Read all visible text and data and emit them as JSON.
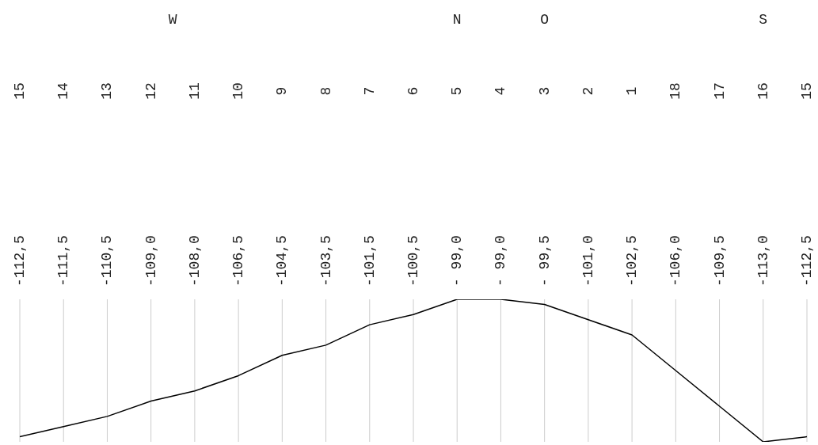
{
  "chart_data": {
    "type": "line",
    "categories": [
      "15",
      "14",
      "13",
      "12",
      "11",
      "10",
      "9",
      "8",
      "7",
      "6",
      "5",
      "4",
      "3",
      "2",
      "1",
      "18",
      "17",
      "16",
      "15"
    ],
    "series": [
      {
        "color": "#000000",
        "values": [
          -112.5,
          -111.5,
          -110.5,
          -109.0,
          -108.0,
          -106.5,
          -104.5,
          -103.5,
          -101.5,
          -100.5,
          -99.0,
          -99.0,
          -99.5,
          -101.0,
          -102.5,
          -106.0,
          -109.5,
          -113.0,
          -112.5
        ],
        "value_labels": [
          "-112,5",
          "-111,5",
          "-110,5",
          "-109,0",
          "-108,0",
          "-106,5",
          "-104,5",
          "-103,5",
          "-101,5",
          "-100,5",
          "- 99,0",
          "- 99,0",
          "- 99,5",
          "-101,0",
          "-102,5",
          "-106,0",
          "-109,5",
          "-113,0",
          "-112,5"
        ]
      }
    ],
    "annotations": [
      "W",
      "N",
      "O",
      "S"
    ],
    "grid": "x",
    "marker": "none",
    "line_style": "solid"
  }
}
